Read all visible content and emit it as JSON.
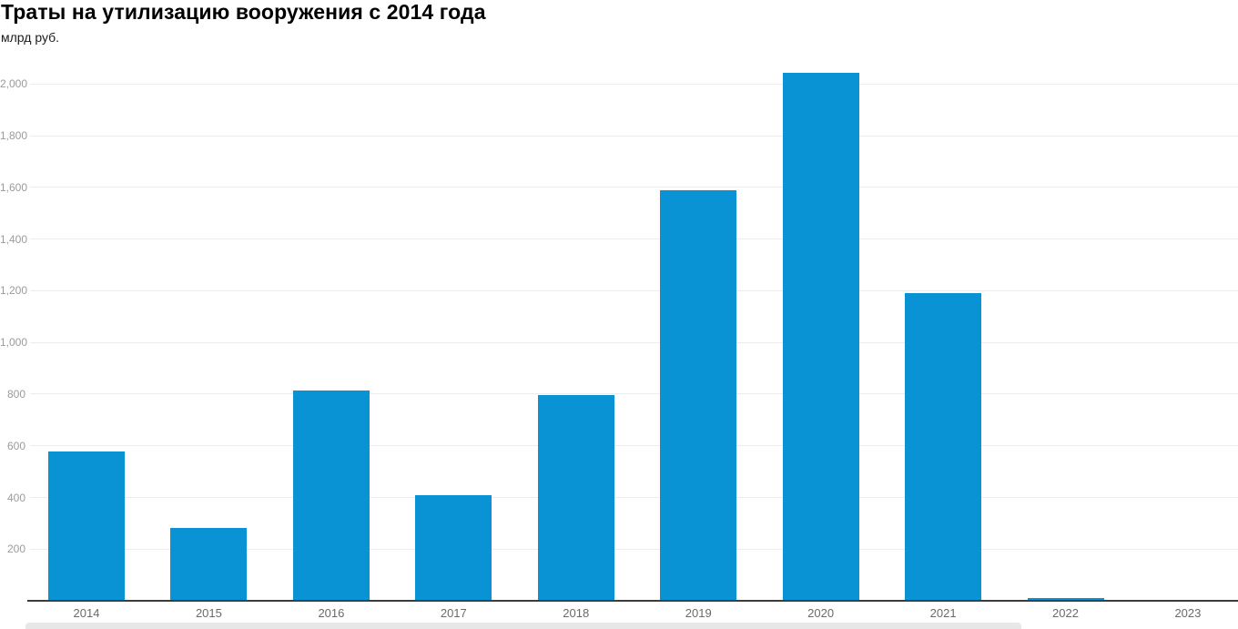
{
  "header": {
    "title": "Траты на утилизацию вооружения с 2014 года",
    "subtitle": "млрд руб."
  },
  "colors": {
    "bar": "#0992d4",
    "grid": "#ececec",
    "axis": "#3c3c3c",
    "y_label": "#9b9b9b",
    "x_label": "#6a6a6a",
    "scrollbar": "#e7e7e7"
  },
  "chart_data": {
    "type": "bar",
    "title": "Траты на утилизацию вооружения с 2014 года",
    "unit_label": "млрд руб.",
    "categories": [
      "2014",
      "2015",
      "2016",
      "2017",
      "2018",
      "2019",
      "2020",
      "2021",
      "2022",
      "2023"
    ],
    "values": [
      578,
      283,
      813,
      408,
      795,
      1590,
      2045,
      1190,
      10,
      0
    ],
    "xlabel": "",
    "ylabel": "млрд руб.",
    "ylim": [
      0,
      2110
    ],
    "y_tick_values": [
      200,
      400,
      600,
      800,
      1000,
      1200,
      1400,
      1600,
      1800,
      2000
    ],
    "y_tick_labels": [
      "200",
      "400",
      "600",
      "800",
      "1,000",
      "1,200",
      "1,400",
      "1,600",
      "1,800",
      "2,000"
    ],
    "grid": true,
    "legend_position": "none"
  }
}
